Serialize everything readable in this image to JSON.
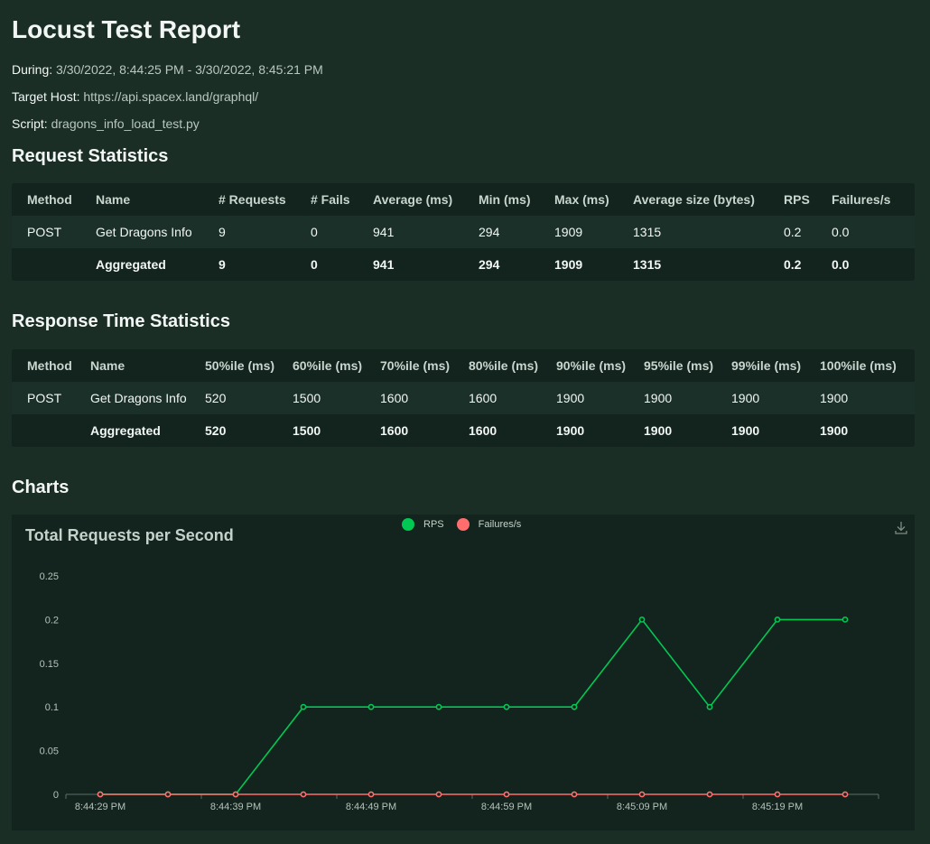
{
  "report": {
    "title": "Locust Test Report",
    "during_label": "During:",
    "during_value": "3/30/2022, 8:44:25 PM - 3/30/2022, 8:45:21 PM",
    "host_label": "Target Host:",
    "host_value": "https://api.spacex.land/graphql/",
    "script_label": "Script:",
    "script_value": "dragons_info_load_test.py"
  },
  "request_stats": {
    "heading": "Request Statistics",
    "columns": [
      "Method",
      "Name",
      "# Requests",
      "# Fails",
      "Average (ms)",
      "Min (ms)",
      "Max (ms)",
      "Average size (bytes)",
      "RPS",
      "Failures/s"
    ],
    "rows": [
      [
        "POST",
        "Get Dragons Info",
        "9",
        "0",
        "941",
        "294",
        "1909",
        "1315",
        "0.2",
        "0.0"
      ]
    ],
    "aggregated": [
      "",
      "Aggregated",
      "9",
      "0",
      "941",
      "294",
      "1909",
      "1315",
      "0.2",
      "0.0"
    ]
  },
  "response_stats": {
    "heading": "Response Time Statistics",
    "columns": [
      "Method",
      "Name",
      "50%ile (ms)",
      "60%ile (ms)",
      "70%ile (ms)",
      "80%ile (ms)",
      "90%ile (ms)",
      "95%ile (ms)",
      "99%ile (ms)",
      "100%ile (ms)"
    ],
    "rows": [
      [
        "POST",
        "Get Dragons Info",
        "520",
        "1500",
        "1600",
        "1600",
        "1900",
        "1900",
        "1900",
        "1900"
      ]
    ],
    "aggregated": [
      "",
      "Aggregated",
      "520",
      "1500",
      "1600",
      "1600",
      "1900",
      "1900",
      "1900",
      "1900"
    ]
  },
  "charts": {
    "heading": "Charts",
    "download_icon": "download-icon"
  },
  "chart_data": {
    "type": "line",
    "title": "Total Requests per Second",
    "x": [
      "8:44:29 PM",
      "8:44:34 PM",
      "8:44:39 PM",
      "8:44:44 PM",
      "8:44:49 PM",
      "8:44:54 PM",
      "8:44:59 PM",
      "8:45:04 PM",
      "8:45:09 PM",
      "8:45:14 PM",
      "8:45:19 PM",
      "8:45:24 PM"
    ],
    "x_tick_labels": [
      "8:44:29 PM",
      "8:44:39 PM",
      "8:44:49 PM",
      "8:44:59 PM",
      "8:45:09 PM",
      "8:45:19 PM"
    ],
    "series": [
      {
        "name": "RPS",
        "color": "#00c853",
        "values": [
          0,
          0,
          0,
          0.1,
          0.1,
          0.1,
          0.1,
          0.1,
          0.2,
          0.1,
          0.2,
          0.2
        ]
      },
      {
        "name": "Failures/s",
        "color": "#ff6d6d",
        "values": [
          0,
          0,
          0,
          0,
          0,
          0,
          0,
          0,
          0,
          0,
          0,
          0
        ]
      }
    ],
    "ylim": [
      0,
      0.25
    ],
    "y_ticks": [
      "0",
      "0.05",
      "0.1",
      "0.15",
      "0.2",
      "0.25"
    ],
    "legend_position": "top-center",
    "grid": false
  }
}
